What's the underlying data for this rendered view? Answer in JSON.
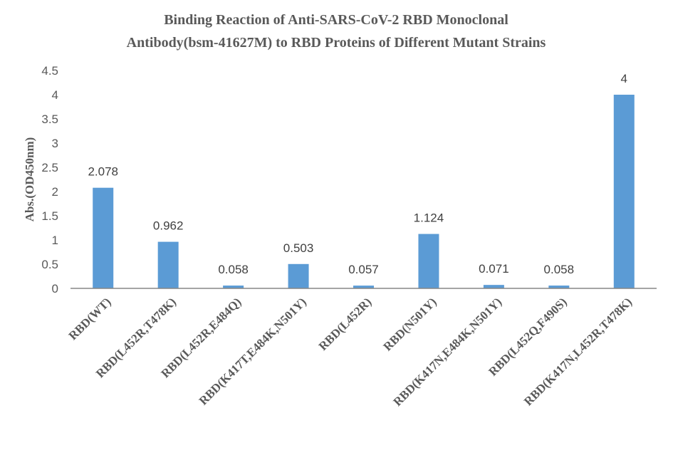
{
  "chart_data": {
    "type": "bar",
    "title": "Binding Reaction of Anti-SARS-CoV-2 RBD Monoclonal Antibody(bsm-41627M) to RBD Proteins of Different Mutant Strains",
    "title_lines": [
      "Binding Reaction of Anti-SARS-CoV-2 RBD Monoclonal",
      "Antibody(bsm-41627M) to RBD Proteins of Different Mutant Strains"
    ],
    "xlabel": "",
    "ylabel": "Abs.(OD450nm)",
    "ylim": [
      0,
      4.5
    ],
    "yticks": [
      "0",
      "0.5",
      "1",
      "1.5",
      "2",
      "2.5",
      "3",
      "3.5",
      "4",
      "4.5"
    ],
    "grid": false,
    "categories": [
      "RBD(WT)",
      "RBD(L452R,T478K)",
      "RBD(L452R,E484Q)",
      "RBD(K417T,E484K,N501Y)",
      "RBD(L452R)",
      "RBD(N501Y)",
      "RBD(K417N,E484K,N501Y)",
      "RBD(L452Q,F490S)",
      "RBD(K417N,L452R,T478K)"
    ],
    "values": [
      2.078,
      0.962,
      0.058,
      0.503,
      0.057,
      1.124,
      0.071,
      0.058,
      4
    ],
    "data_labels": [
      "2.078",
      "0.962",
      "0.058",
      "0.503",
      "0.057",
      "1.124",
      "0.071",
      "0.058",
      "4"
    ],
    "bar_color": "#5B9BD5"
  }
}
